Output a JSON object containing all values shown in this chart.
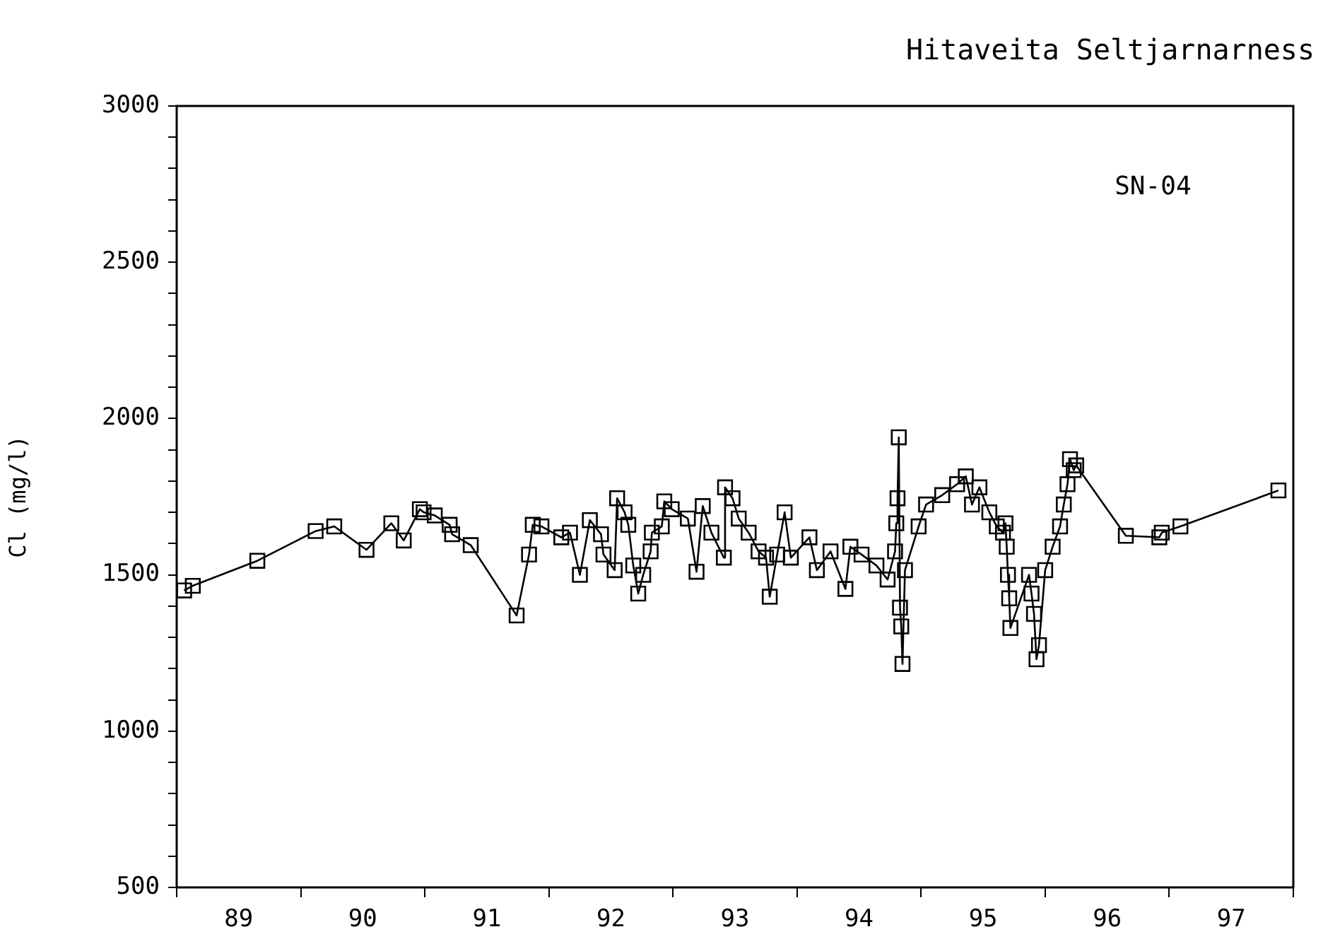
{
  "chart_data": {
    "type": "line",
    "title": "Hitaveita Seltjarnarness",
    "ylabel": "Cl (mg/l)",
    "annotations": [
      "SN-04"
    ],
    "xlim": [
      89,
      98
    ],
    "xticks": [
      {
        "value": 89,
        "label": null
      },
      {
        "value": 89.5,
        "label": "89"
      },
      {
        "value": 90,
        "label": null
      },
      {
        "value": 90.5,
        "label": "90"
      },
      {
        "value": 91,
        "label": null
      },
      {
        "value": 91.5,
        "label": "91"
      },
      {
        "value": 92,
        "label": null
      },
      {
        "value": 92.5,
        "label": "92"
      },
      {
        "value": 93,
        "label": null
      },
      {
        "value": 93.5,
        "label": "93"
      },
      {
        "value": 94,
        "label": null
      },
      {
        "value": 94.5,
        "label": "94"
      },
      {
        "value": 95,
        "label": null
      },
      {
        "value": 95.5,
        "label": "95"
      },
      {
        "value": 96,
        "label": null
      },
      {
        "value": 96.5,
        "label": "96"
      },
      {
        "value": 97,
        "label": null
      },
      {
        "value": 97.5,
        "label": "97"
      },
      {
        "value": 98,
        "label": null
      }
    ],
    "ylim": [
      500,
      3000
    ],
    "yticks": [
      500,
      {
        "value": 600,
        "label": null
      },
      {
        "value": 700,
        "label": null
      },
      {
        "value": 800,
        "label": null
      },
      {
        "value": 900,
        "label": null
      },
      1000,
      {
        "value": 1100,
        "label": null
      },
      {
        "value": 1200,
        "label": null
      },
      {
        "value": 1300,
        "label": null
      },
      {
        "value": 1400,
        "label": null
      },
      1500,
      {
        "value": 1600,
        "label": null
      },
      {
        "value": 1700,
        "label": null
      },
      {
        "value": 1800,
        "label": null
      },
      {
        "value": 1900,
        "label": null
      },
      2000,
      {
        "value": 2100,
        "label": null
      },
      {
        "value": 2200,
        "label": null
      },
      {
        "value": 2300,
        "label": null
      },
      {
        "value": 2400,
        "label": null
      },
      2500,
      {
        "value": 2600,
        "label": null
      },
      {
        "value": 2700,
        "label": null
      },
      {
        "value": 2800,
        "label": null
      },
      {
        "value": 2900,
        "label": null
      },
      3000
    ],
    "grid": false,
    "legend": false,
    "marker": "square",
    "line_style": "solid",
    "color": "#000000",
    "x": [
      89.06,
      89.13,
      89.65,
      90.12,
      90.27,
      90.53,
      90.73,
      90.83,
      90.96,
      90.99,
      91.08,
      91.2,
      91.22,
      91.37,
      91.74,
      91.84,
      91.87,
      91.94,
      92.1,
      92.17,
      92.25,
      92.33,
      92.42,
      92.44,
      92.53,
      92.55,
      92.61,
      92.64,
      92.68,
      92.72,
      92.76,
      92.82,
      92.83,
      92.91,
      92.93,
      92.99,
      93.12,
      93.19,
      93.24,
      93.31,
      93.41,
      93.42,
      93.48,
      93.53,
      93.61,
      93.69,
      93.75,
      93.78,
      93.84,
      93.9,
      93.95,
      94.1,
      94.16,
      94.27,
      94.39,
      94.43,
      94.52,
      94.64,
      94.73,
      94.79,
      94.8,
      94.81,
      94.82,
      94.83,
      94.84,
      94.85,
      94.87,
      94.98,
      95.04,
      95.17,
      95.29,
      95.36,
      95.41,
      95.47,
      95.55,
      95.61,
      95.66,
      95.68,
      95.69,
      95.7,
      95.71,
      95.72,
      95.87,
      95.89,
      95.91,
      95.93,
      95.95,
      96,
      96.06,
      96.12,
      96.15,
      96.18,
      96.2,
      96.23,
      96.25,
      96.65,
      96.92,
      96.94,
      97.09,
      97.88
    ],
    "values": [
      1450,
      1465,
      1545,
      1640,
      1655,
      1580,
      1665,
      1610,
      1710,
      1700,
      1690,
      1660,
      1630,
      1595,
      1370,
      1565,
      1660,
      1655,
      1620,
      1635,
      1500,
      1675,
      1630,
      1565,
      1515,
      1745,
      1700,
      1660,
      1530,
      1440,
      1500,
      1575,
      1635,
      1655,
      1735,
      1710,
      1680,
      1510,
      1720,
      1635,
      1555,
      1780,
      1745,
      1680,
      1635,
      1575,
      1555,
      1430,
      1565,
      1700,
      1555,
      1620,
      1515,
      1575,
      1455,
      1590,
      1565,
      1530,
      1485,
      1575,
      1665,
      1745,
      1940,
      1395,
      1335,
      1215,
      1515,
      1655,
      1725,
      1755,
      1790,
      1815,
      1725,
      1780,
      1700,
      1655,
      1635,
      1665,
      1590,
      1500,
      1425,
      1330,
      1500,
      1440,
      1375,
      1230,
      1275,
      1515,
      1590,
      1655,
      1725,
      1790,
      1870,
      1835,
      1850,
      1625,
      1620,
      1635,
      1655,
      1770
    ]
  }
}
